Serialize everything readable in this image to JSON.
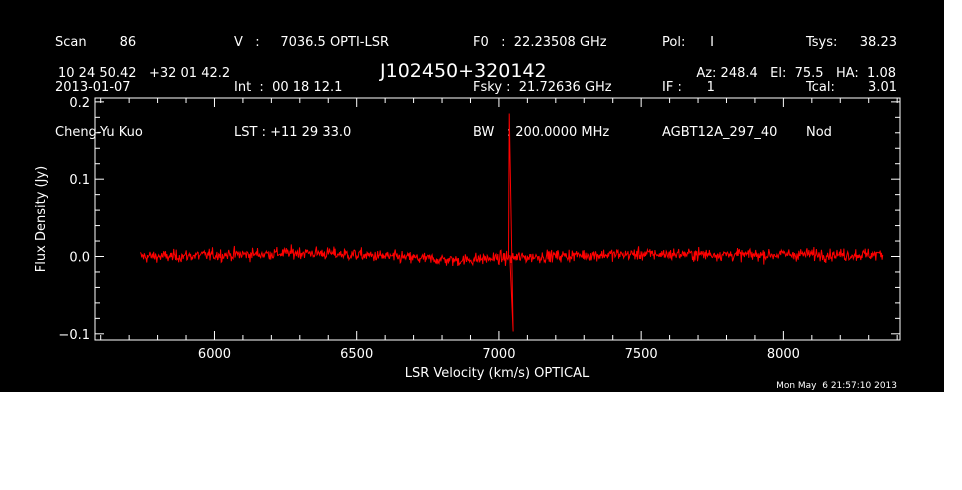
{
  "header": {
    "col1": [
      "Scan        86",
      "2013-01-07",
      "Cheng-Yu Kuo"
    ],
    "col2": [
      "V   :     7036.5 OPTI-LSR",
      "Int  :  00 18 12.1",
      "LST : +11 29 33.0"
    ],
    "col3": [
      "F0   :  22.23508 GHz",
      "Fsky :  21.72636 GHz",
      "BW   : 200.0000 MHz"
    ],
    "col4": [
      "Pol:      I",
      "IF :      1",
      "AGBT12A_297_40"
    ],
    "col5_labels": [
      "Tsys:",
      "Tcal:",
      "Nod"
    ],
    "col5_values": [
      "38.23",
      "3.01",
      ""
    ],
    "coords": "10 24 50.42   +32 01 42.2",
    "source": "J102450+320142",
    "pointing": "Az: 248.4   El:  75.5   HA:  1.08"
  },
  "timestamp": "Mon May  6 21:57:10 2013",
  "colors": {
    "background": "#000000",
    "axes": "#ffffff",
    "trace": "#ff0000"
  },
  "chart_data": {
    "type": "line",
    "title": "J102450+320142",
    "xlabel": "LSR Velocity (km/s) OPTICAL",
    "ylabel": "Flux Density (Jy)",
    "xlim": [
      5580,
      8410
    ],
    "ylim": [
      -0.108,
      0.205
    ],
    "xticks": [
      6000,
      6500,
      7000,
      7500,
      8000
    ],
    "xtick_labels": [
      "6000",
      "6500",
      "7000",
      "7500",
      "8000"
    ],
    "yticks": [
      -0.1,
      0.0,
      0.1,
      0.2
    ],
    "ytick_labels": [
      "−0.1",
      "0.0",
      "0.1",
      "0.2"
    ],
    "grid": false,
    "series": [
      {
        "x": [
          5740,
          5850,
          6000,
          6150,
          6300,
          6400,
          6550,
          6700,
          6850,
          6950,
          7020,
          7036,
          7050,
          7150,
          7300,
          7500,
          7700,
          7900,
          8100,
          8250,
          8350
        ],
        "y": [
          0.0,
          0.0,
          0.002,
          0.003,
          0.005,
          0.004,
          0.001,
          -0.002,
          -0.005,
          -0.003,
          -0.002,
          0.185,
          -0.097,
          0.0,
          0.002,
          0.003,
          0.003,
          0.002,
          0.003,
          0.002,
          0.003
        ],
        "noise_rms": 0.004
      }
    ]
  }
}
